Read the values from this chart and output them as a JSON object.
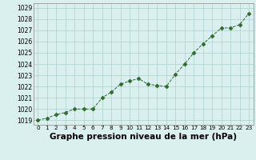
{
  "x": [
    0,
    1,
    2,
    3,
    4,
    5,
    6,
    7,
    8,
    9,
    10,
    11,
    12,
    13,
    14,
    15,
    16,
    17,
    18,
    19,
    20,
    21,
    22,
    23
  ],
  "y": [
    1019.0,
    1019.2,
    1019.5,
    1019.7,
    1020.0,
    1020.0,
    1020.0,
    1021.0,
    1021.5,
    1022.2,
    1022.5,
    1022.7,
    1022.2,
    1022.1,
    1022.0,
    1023.1,
    1024.0,
    1025.0,
    1025.8,
    1026.5,
    1027.2,
    1027.2,
    1027.5,
    1028.5
  ],
  "line_color": "#2d6a2d",
  "marker": "D",
  "marker_size": 2.5,
  "bg_color": "#daf0ee",
  "grid_color": "#b0cece",
  "xlabel": "Graphe pression niveau de la mer (hPa)",
  "xlabel_fontsize": 7.5,
  "ylabel_ticks": [
    1019,
    1020,
    1021,
    1022,
    1023,
    1024,
    1025,
    1026,
    1027,
    1028,
    1029
  ],
  "xlim": [
    -0.5,
    23.5
  ],
  "ylim": [
    1018.6,
    1029.4
  ],
  "xtick_labels": [
    "0",
    "1",
    "2",
    "3",
    "4",
    "5",
    "6",
    "7",
    "8",
    "9",
    "10",
    "11",
    "12",
    "13",
    "14",
    "15",
    "16",
    "17",
    "18",
    "19",
    "20",
    "21",
    "22",
    "23"
  ],
  "tick_fontsize": 5.2,
  "ytick_fontsize": 5.5
}
